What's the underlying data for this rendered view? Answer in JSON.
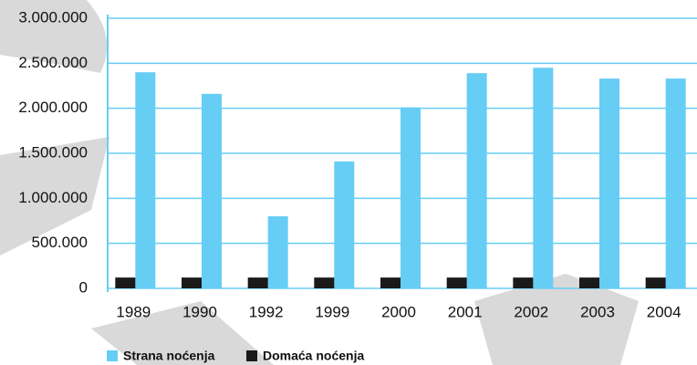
{
  "chart_data": {
    "type": "bar",
    "categories": [
      "1989",
      "1990",
      "1992",
      "1999",
      "2000",
      "2001",
      "2002",
      "2003",
      "2004"
    ],
    "series": [
      {
        "name": "Strana noćenja",
        "color": "#66cdf5",
        "values": [
          2400000,
          2160000,
          800000,
          1410000,
          2010000,
          2390000,
          2450000,
          2330000,
          2330000
        ]
      },
      {
        "name": "Domaća noćenja",
        "color": "#1a1a1a",
        "values": [
          120000,
          120000,
          120000,
          120000,
          120000,
          120000,
          120000,
          120000,
          120000
        ]
      }
    ],
    "ylim": [
      0,
      3000000
    ],
    "yticks": [
      0,
      {
        "value": 500000,
        "label": "500.000"
      },
      {
        "value": 1000000,
        "label": "1.000.000"
      },
      {
        "value": 1500000,
        "label": "1.500.000"
      },
      {
        "value": 2000000,
        "label": "2.000.000"
      },
      {
        "value": 2500000,
        "label": "2.500.000"
      },
      {
        "value": 3000000,
        "label": "3.000.000"
      }
    ],
    "grid": true
  }
}
